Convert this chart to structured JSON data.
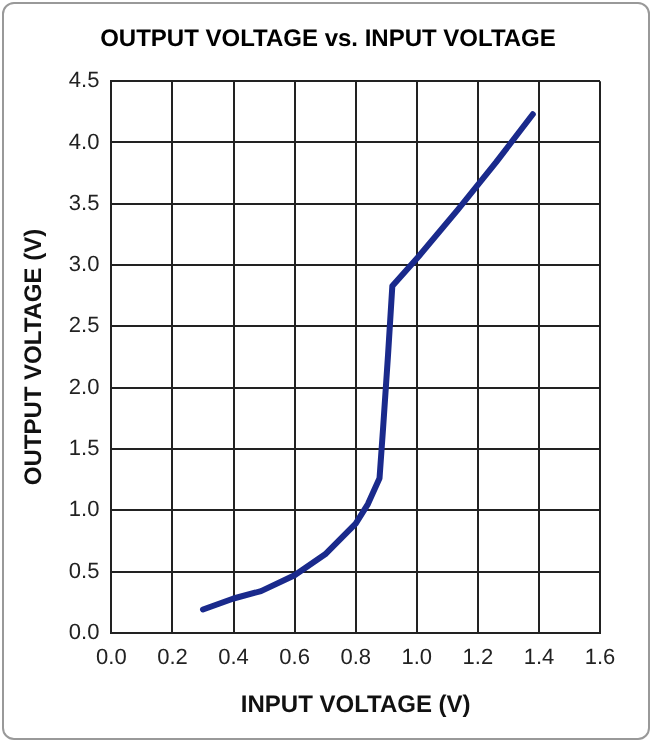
{
  "chart_data": {
    "type": "line",
    "title": "OUTPUT VOLTAGE vs. INPUT VOLTAGE",
    "xlabel": "INPUT VOLTAGE (V)",
    "ylabel": "OUTPUT VOLTAGE (V)",
    "series": [
      {
        "color": "#1a2a8c",
        "x": [
          0.3,
          0.4,
          0.49,
          0.6,
          0.7,
          0.8,
          0.84,
          0.878,
          0.89,
          0.906,
          0.92,
          1.006,
          1.134,
          1.26,
          1.38
        ],
        "values": [
          0.19,
          0.28,
          0.34,
          0.47,
          0.64,
          0.89,
          1.05,
          1.26,
          1.68,
          2.27,
          2.83,
          3.07,
          3.45,
          3.84,
          4.23
        ]
      }
    ],
    "xlim": [
      0,
      1.6
    ],
    "xticks": [
      {
        "value": 0,
        "label": "0.0"
      },
      0.2,
      0.4,
      0.6,
      0.8,
      {
        "value": 1,
        "label": "1.0"
      },
      1.2,
      1.4,
      1.6
    ],
    "ylim": [
      0,
      4.5
    ],
    "yticks": [
      {
        "value": 0,
        "label": "0.0"
      },
      0.5,
      {
        "value": 1,
        "label": "1.0"
      },
      1.5,
      {
        "value": 2,
        "label": "2.0"
      },
      2.5,
      {
        "value": 3,
        "label": "3.0"
      },
      3.5,
      {
        "value": 4,
        "label": "4.0"
      },
      4.5
    ],
    "grid": true,
    "legend": false,
    "marker": "none",
    "line_style": "solid"
  }
}
